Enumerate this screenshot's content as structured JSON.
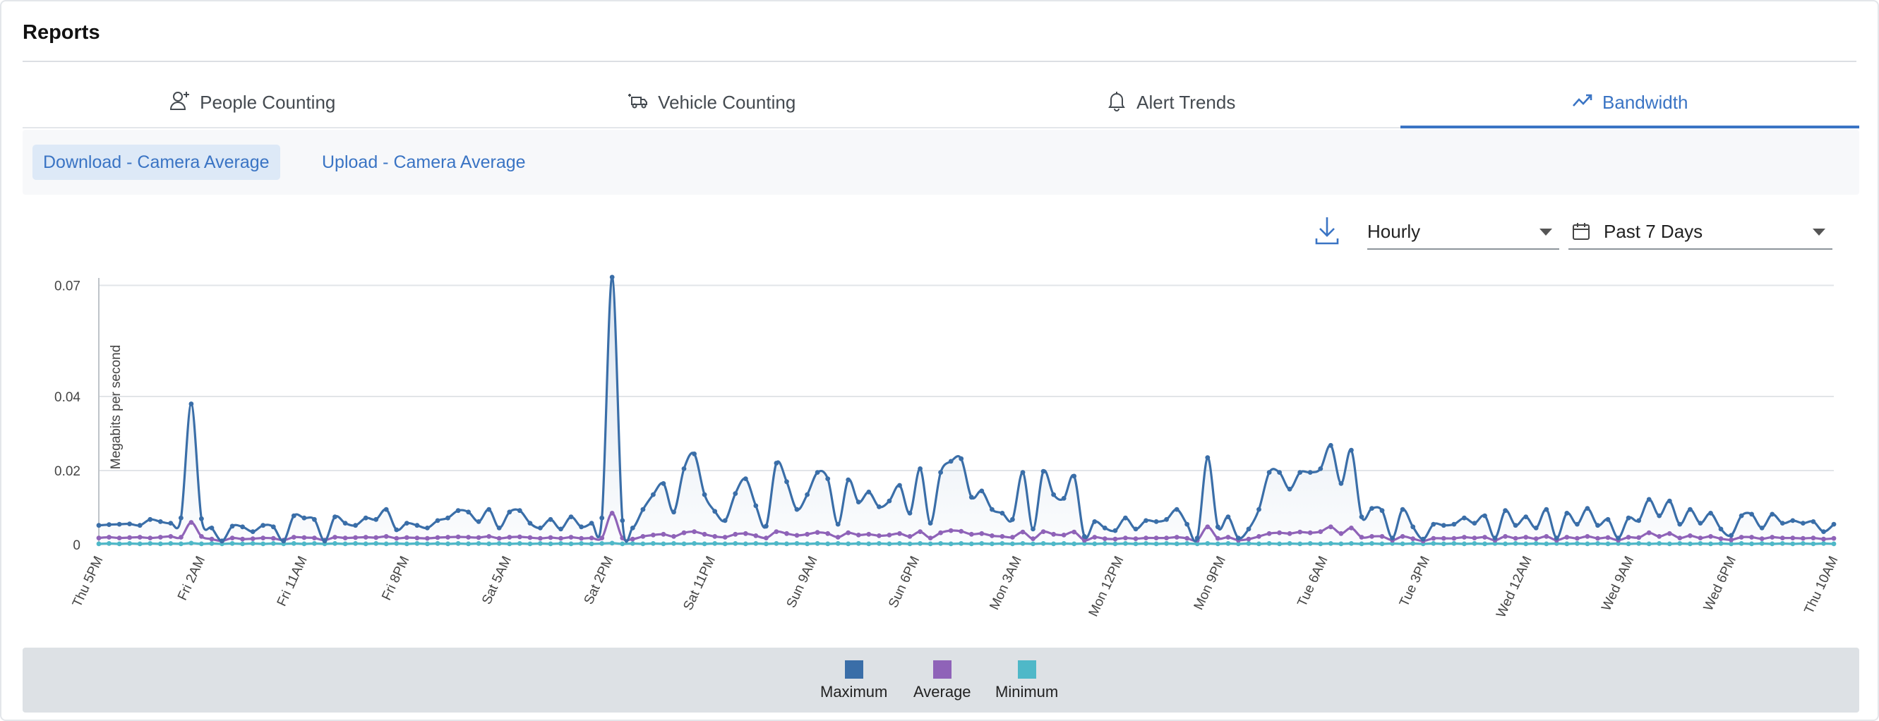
{
  "header": {
    "title": "Reports"
  },
  "tabs": [
    {
      "label": "People Counting",
      "icon": "person-add-icon",
      "active": false
    },
    {
      "label": "Vehicle Counting",
      "icon": "vehicle-icon",
      "active": false
    },
    {
      "label": "Alert Trends",
      "icon": "bell-icon",
      "active": false
    },
    {
      "label": "Bandwidth",
      "icon": "trend-line-icon",
      "active": true
    }
  ],
  "subtabs": [
    {
      "label": "Download - Camera Average",
      "active": true
    },
    {
      "label": "Upload - Camera Average",
      "active": false
    }
  ],
  "controls": {
    "download_icon": "download-icon",
    "interval": "Hourly",
    "range": "Past 7 Days",
    "range_icon": "calendar-icon"
  },
  "colors": {
    "accent": "#3a74c4",
    "maximum": "#3a6ea8",
    "average": "#8f63b8",
    "minimum": "#4fb8c8"
  },
  "chart_data": {
    "type": "line",
    "ylabel": "Megabits per second",
    "yticks": [
      "0",
      "0.02",
      "0.04",
      "0.07"
    ],
    "ytick_values": [
      0,
      0.02,
      0.04,
      0.07
    ],
    "ylim": [
      0,
      0.072
    ],
    "grid": true,
    "x_tick_labels": [
      "Thu 5PM",
      "Fri 2AM",
      "Fri 11AM",
      "Fri 8PM",
      "Sat 5AM",
      "Sat 2PM",
      "Sat 11PM",
      "Sun 9AM",
      "Sun 6PM",
      "Mon 3AM",
      "Mon 12PM",
      "Mon 9PM",
      "Tue 6AM",
      "Tue 3PM",
      "Wed 12AM",
      "Wed 9AM",
      "Wed 6PM",
      "Thu 10AM"
    ],
    "legend_position": "bottom",
    "series": [
      {
        "name": "Maximum",
        "values": [
          0.0052,
          0.0054,
          0.0055,
          0.0056,
          0.0052,
          0.0068,
          0.0062,
          0.0058,
          0.0072,
          0.038,
          0.007,
          0.0045,
          0.001,
          0.005,
          0.0048,
          0.0035,
          0.0052,
          0.0048,
          0.001,
          0.0078,
          0.0072,
          0.0068,
          0.001,
          0.0075,
          0.0058,
          0.0052,
          0.0072,
          0.0068,
          0.0095,
          0.004,
          0.0058,
          0.0052,
          0.0045,
          0.0065,
          0.0072,
          0.0092,
          0.0088,
          0.0062,
          0.0095,
          0.0045,
          0.0088,
          0.0092,
          0.0058,
          0.0045,
          0.0068,
          0.0042,
          0.0075,
          0.0048,
          0.0058,
          0.0072,
          0.0722,
          0.0065,
          0.0045,
          0.0095,
          0.0135,
          0.0165,
          0.0088,
          0.0205,
          0.0245,
          0.0135,
          0.009,
          0.0065,
          0.0138,
          0.0178,
          0.0105,
          0.005,
          0.022,
          0.017,
          0.0095,
          0.0135,
          0.0195,
          0.0178,
          0.0055,
          0.0175,
          0.0115,
          0.0142,
          0.0102,
          0.0118,
          0.016,
          0.0085,
          0.0205,
          0.0058,
          0.0195,
          0.0225,
          0.0232,
          0.0128,
          0.0145,
          0.0095,
          0.0085,
          0.0068,
          0.0195,
          0.0042,
          0.0198,
          0.0135,
          0.0125,
          0.0185,
          0.0022,
          0.0062,
          0.0045,
          0.0038,
          0.0072,
          0.0042,
          0.0065,
          0.0062,
          0.0068,
          0.0095,
          0.0055,
          0.0018,
          0.0235,
          0.0048,
          0.0075,
          0.0018,
          0.0042,
          0.0095,
          0.0195,
          0.0195,
          0.015,
          0.0195,
          0.0195,
          0.0205,
          0.0268,
          0.0165,
          0.0255,
          0.0075,
          0.0098,
          0.0092,
          0.0018,
          0.0095,
          0.0048,
          0.0015,
          0.0055,
          0.0052,
          0.0055,
          0.0072,
          0.0058,
          0.0078,
          0.0018,
          0.0092,
          0.0052,
          0.0075,
          0.0045,
          0.0095,
          0.0018,
          0.0085,
          0.0055,
          0.0098,
          0.0052,
          0.0068,
          0.0018,
          0.0072,
          0.0065,
          0.0122,
          0.0078,
          0.0118,
          0.0055,
          0.0095,
          0.0058,
          0.0085,
          0.0042,
          0.0025,
          0.0078,
          0.0082,
          0.0045,
          0.0082,
          0.0058,
          0.0065,
          0.0058,
          0.0062,
          0.0035,
          0.0055
        ]
      },
      {
        "name": "Average",
        "values": [
          0.0018,
          0.002,
          0.0018,
          0.0019,
          0.002,
          0.0018,
          0.002,
          0.0022,
          0.002,
          0.006,
          0.0022,
          0.0015,
          0.001,
          0.0018,
          0.0015,
          0.0016,
          0.0018,
          0.0017,
          0.0012,
          0.002,
          0.0019,
          0.0018,
          0.0012,
          0.002,
          0.0018,
          0.0019,
          0.002,
          0.0019,
          0.0022,
          0.0017,
          0.0019,
          0.0018,
          0.0017,
          0.0019,
          0.002,
          0.0021,
          0.002,
          0.0019,
          0.0022,
          0.0017,
          0.002,
          0.0021,
          0.0019,
          0.0017,
          0.0019,
          0.0017,
          0.002,
          0.0017,
          0.0018,
          0.0018,
          0.0085,
          0.0018,
          0.0015,
          0.0022,
          0.0026,
          0.0028,
          0.0022,
          0.0032,
          0.0035,
          0.0028,
          0.0022,
          0.002,
          0.0028,
          0.003,
          0.0024,
          0.0018,
          0.0035,
          0.003,
          0.0025,
          0.0028,
          0.0033,
          0.003,
          0.002,
          0.0032,
          0.0026,
          0.0028,
          0.0024,
          0.0026,
          0.003,
          0.0022,
          0.0035,
          0.0018,
          0.0032,
          0.0038,
          0.0036,
          0.0028,
          0.003,
          0.0024,
          0.0022,
          0.002,
          0.0034,
          0.0016,
          0.0035,
          0.0028,
          0.0026,
          0.0034,
          0.0012,
          0.002,
          0.0016,
          0.0015,
          0.0018,
          0.0016,
          0.0018,
          0.0018,
          0.0018,
          0.002,
          0.0017,
          0.0012,
          0.0048,
          0.0017,
          0.002,
          0.0012,
          0.0015,
          0.0022,
          0.003,
          0.0032,
          0.003,
          0.0034,
          0.0032,
          0.0035,
          0.0048,
          0.003,
          0.0045,
          0.002,
          0.0022,
          0.0022,
          0.0012,
          0.0022,
          0.0016,
          0.001,
          0.0017,
          0.0017,
          0.0017,
          0.002,
          0.0018,
          0.002,
          0.0012,
          0.0022,
          0.0017,
          0.002,
          0.0016,
          0.0022,
          0.0012,
          0.002,
          0.0017,
          0.0022,
          0.0017,
          0.0019,
          0.0012,
          0.002,
          0.0019,
          0.0032,
          0.0022,
          0.003,
          0.0018,
          0.0024,
          0.0018,
          0.0022,
          0.0016,
          0.0013,
          0.002,
          0.002,
          0.0016,
          0.002,
          0.0018,
          0.0018,
          0.0017,
          0.0018,
          0.0015,
          0.0017
        ]
      },
      {
        "name": "Minimum",
        "values": [
          0.0002,
          0.0003,
          0.0002,
          0.0003,
          0.0002,
          0.0003,
          0.0002,
          0.0003,
          0.0002,
          0.0004,
          0.0002,
          0.0003,
          0.0002,
          0.0003,
          0.0002,
          0.0003,
          0.0002,
          0.0003,
          0.0002,
          0.0003,
          0.0002,
          0.0003,
          0.0002,
          0.0003,
          0.0002,
          0.0003,
          0.0002,
          0.0003,
          0.0002,
          0.0003,
          0.0002,
          0.0003,
          0.0002,
          0.0003,
          0.0002,
          0.0003,
          0.0002,
          0.0003,
          0.0002,
          0.0003,
          0.0002,
          0.0003,
          0.0002,
          0.0003,
          0.0002,
          0.0003,
          0.0002,
          0.0003,
          0.0002,
          0.0003,
          0.0004,
          0.0002,
          0.0003,
          0.0002,
          0.0003,
          0.0002,
          0.0003,
          0.0002,
          0.0003,
          0.0002,
          0.0003,
          0.0002,
          0.0003,
          0.0002,
          0.0003,
          0.0002,
          0.0003,
          0.0002,
          0.0003,
          0.0002,
          0.0003,
          0.0002,
          0.0003,
          0.0002,
          0.0003,
          0.0002,
          0.0003,
          0.0002,
          0.0003,
          0.0002,
          0.0003,
          0.0002,
          0.0003,
          0.0002,
          0.0003,
          0.0002,
          0.0003,
          0.0002,
          0.0003,
          0.0002,
          0.0003,
          0.0002,
          0.0003,
          0.0002,
          0.0003,
          0.0002,
          0.0003,
          0.0002,
          0.0003,
          0.0002,
          0.0003,
          0.0002,
          0.0003,
          0.0002,
          0.0003,
          0.0002,
          0.0003,
          0.0002,
          0.0003,
          0.0002,
          0.0003,
          0.0002,
          0.0003,
          0.0002,
          0.0003,
          0.0002,
          0.0003,
          0.0002,
          0.0003,
          0.0002,
          0.0003,
          0.0002,
          0.0003,
          0.0002,
          0.0003,
          0.0002,
          0.0003,
          0.0002,
          0.0003,
          0.0002,
          0.0003,
          0.0002,
          0.0003,
          0.0002,
          0.0003,
          0.0002,
          0.0003,
          0.0002,
          0.0003,
          0.0002,
          0.0003,
          0.0002,
          0.0003,
          0.0002,
          0.0003,
          0.0002,
          0.0003,
          0.0002,
          0.0003,
          0.0002,
          0.0003,
          0.0002,
          0.0003,
          0.0002,
          0.0003,
          0.0002,
          0.0003,
          0.0002,
          0.0003,
          0.0002,
          0.0003,
          0.0002,
          0.0003,
          0.0002,
          0.0003,
          0.0002,
          0.0003,
          0.0002,
          0.0003,
          0.0002
        ]
      }
    ]
  },
  "legend": [
    {
      "label": "Maximum",
      "color": "#3a6ea8"
    },
    {
      "label": "Average",
      "color": "#8f63b8"
    },
    {
      "label": "Minimum",
      "color": "#4fb8c8"
    }
  ]
}
